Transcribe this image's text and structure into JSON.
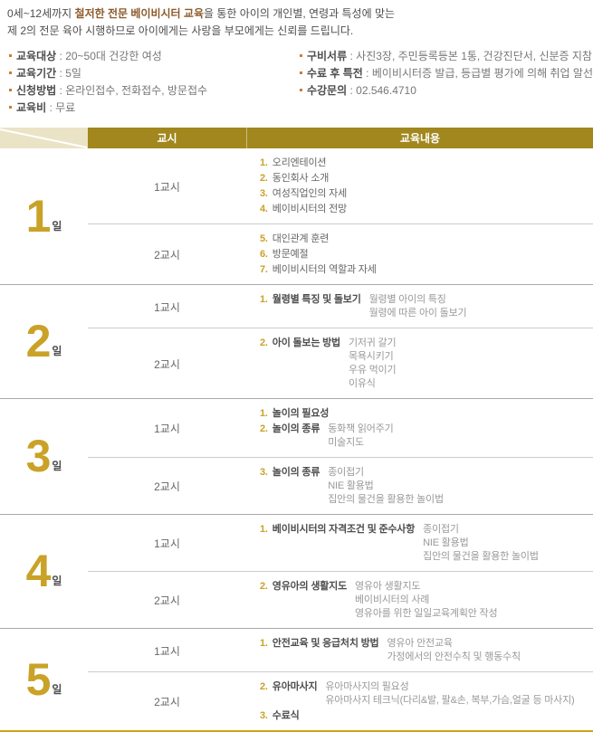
{
  "intro": {
    "line1_pre": "0세~12세까지 ",
    "line1_highlight": "철저한 전문 베이비시터 교육",
    "line1_post": "을 통한 아이의 개인별, 연령과 특성에 맞는",
    "line2": "제 2의 전문 육아 시행하므로 아이에게는 사랑을 부모에게는 신뢰를 드립니다."
  },
  "info": {
    "separator": " : ",
    "left": [
      {
        "label": "교육대상",
        "value": "20~50대 건강한 여성"
      },
      {
        "label": "교육기간",
        "value": "5일"
      },
      {
        "label": "신청방법",
        "value": "온라인접수, 전화접수, 방문접수"
      },
      {
        "label": "교육비",
        "value": "무료"
      }
    ],
    "right": [
      {
        "label": "구비서류",
        "value": "사진3장, 주민등록등본 1통, 건강진단서, 신분증 지참"
      },
      {
        "label": "수료 후 특전",
        "value": "베이비시터증 발급, 등급별 평가에 의해 취업 알선"
      },
      {
        "label": "수강문의",
        "value": "02.546.4710"
      }
    ]
  },
  "table": {
    "header": {
      "period": "교시",
      "content": "교육내용"
    },
    "days": [
      {
        "day": "1",
        "unit": "일",
        "sessions": [
          {
            "period": "1교시",
            "items": [
              {
                "num": "1.",
                "title": "오리엔테이션",
                "bold": false,
                "details": []
              },
              {
                "num": "2.",
                "title": "동인회사 소개",
                "bold": false,
                "details": []
              },
              {
                "num": "3.",
                "title": "여성직업인의 자세",
                "bold": false,
                "details": []
              },
              {
                "num": "4.",
                "title": "베이비시터의 전망",
                "bold": false,
                "details": []
              }
            ]
          },
          {
            "period": "2교시",
            "items": [
              {
                "num": "5.",
                "title": "대인관계 훈련",
                "bold": false,
                "details": []
              },
              {
                "num": "6.",
                "title": "방문예절",
                "bold": false,
                "details": []
              },
              {
                "num": "7.",
                "title": "베이비시터의 역할과 자세",
                "bold": false,
                "details": []
              }
            ]
          }
        ]
      },
      {
        "day": "2",
        "unit": "일",
        "sessions": [
          {
            "period": "1교시",
            "items": [
              {
                "num": "1.",
                "title": "월령별 특징 및 돌보기",
                "bold": true,
                "details": [
                  "월령별 아이의 특징",
                  "월령에 따른 아이 돌보기"
                ]
              }
            ]
          },
          {
            "period": "2교시",
            "items": [
              {
                "num": "2.",
                "title": "아이 돌보는 방법",
                "bold": true,
                "details": [
                  "기저귀 갈기",
                  "목욕시키기",
                  "우유 먹이기",
                  "이유식"
                ]
              }
            ]
          }
        ]
      },
      {
        "day": "3",
        "unit": "일",
        "sessions": [
          {
            "period": "1교시",
            "items": [
              {
                "num": "1.",
                "title": "놀이의 필요성",
                "bold": true,
                "details": []
              },
              {
                "num": "2.",
                "title": "놀이의 종류",
                "bold": true,
                "details": [
                  "동화책 읽어주기",
                  "미술지도"
                ]
              }
            ]
          },
          {
            "period": "2교시",
            "items": [
              {
                "num": "3.",
                "title": "놀이의 종류",
                "bold": true,
                "details": [
                  "종이접기",
                  "NIE 활용법",
                  "집안의 물건을 활용한 놀이법"
                ]
              }
            ]
          }
        ]
      },
      {
        "day": "4",
        "unit": "일",
        "sessions": [
          {
            "period": "1교시",
            "items": [
              {
                "num": "1.",
                "title": "베이비시터의 자격조건 및 준수사항",
                "bold": true,
                "details": [
                  "종이접기",
                  "NIE 활용법",
                  "집안의 물건을 활용한 놀이법"
                ]
              }
            ]
          },
          {
            "period": "2교시",
            "items": [
              {
                "num": "2.",
                "title": "영유아의 생활지도",
                "bold": true,
                "details": [
                  "영유아 생활지도",
                  "베이비시터의 사례",
                  "영유아를 위한 일일교육계획안 작성"
                ]
              }
            ]
          }
        ]
      },
      {
        "day": "5",
        "unit": "일",
        "sessions": [
          {
            "period": "1교시",
            "items": [
              {
                "num": "1.",
                "title": "안전교육 및 응급처치 방법",
                "bold": true,
                "details": [
                  "영유아 안전교육",
                  "가정에서의 안전수칙 및 행동수칙"
                ]
              }
            ]
          },
          {
            "period": "2교시",
            "items": [
              {
                "num": "2.",
                "title": "유아마사지",
                "bold": true,
                "details": [
                  "유아마사지의 필요성",
                  "유아마사지 테크닉(다리&발, 팔&손, 복부,가슴,얼굴 등 마사지)"
                ]
              },
              {
                "num": "3.",
                "title": "수료식",
                "bold": true,
                "details": []
              }
            ]
          }
        ]
      }
    ]
  },
  "colors": {
    "header_gold": "#a1871d",
    "header_beige": "#eae3c6",
    "accent_gold": "#c9a227",
    "bottom_line_gold": "#cfa21d",
    "highlight_brown": "#8c5a2b",
    "bullet_orange": "#c87f33"
  }
}
